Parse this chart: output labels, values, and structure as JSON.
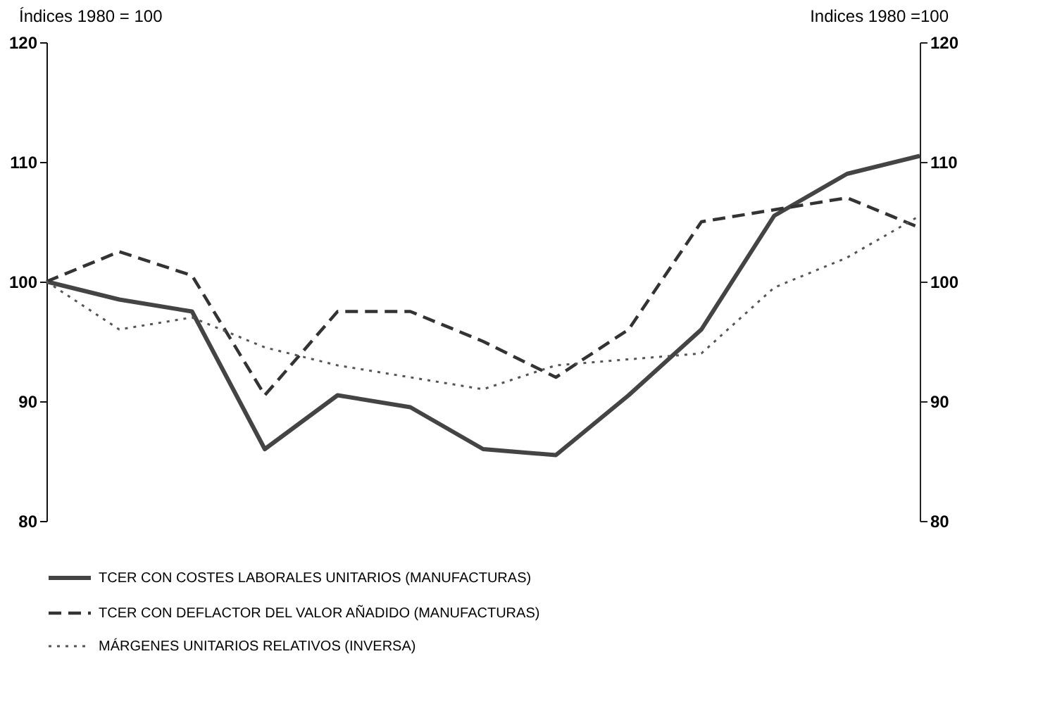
{
  "chart_data": {
    "type": "line",
    "ylabel": "Índices 1980 = 100",
    "y2label": "Indices 1980 =100",
    "categories": [
      null,
      null,
      null,
      null,
      null,
      null,
      null,
      null,
      null,
      null,
      null,
      null,
      null
    ],
    "series": [
      {
        "name": "TCER CON COSTES LABORALES UNITARIOS (MANUFACTURAS)",
        "color": "#444444",
        "line_style": "solid",
        "values": [
          100,
          98.5,
          97.5,
          86,
          90.5,
          89.5,
          86,
          85.5,
          90.5,
          96,
          105.5,
          109,
          110.5
        ]
      },
      {
        "name": "TCER CON DEFLACTOR DEL VALOR AÑADIDO (MANUFACTURAS)",
        "color": "#333333",
        "line_style": "dashed",
        "values": [
          100,
          102.5,
          100.5,
          90.5,
          97.5,
          97.5,
          95,
          92,
          96,
          105,
          106,
          107,
          104.5
        ]
      },
      {
        "name": "MÁRGENES UNITARIOS RELATIVOS (INVERSA)",
        "color": "#555555",
        "line_style": "dotted",
        "values": [
          100,
          96,
          97,
          94.5,
          93,
          92,
          91,
          93,
          93.5,
          94,
          99.5,
          102,
          105.5
        ]
      }
    ],
    "ylim": [
      80,
      120
    ],
    "yticks": [
      80,
      90,
      100,
      110,
      120
    ],
    "y2lim": [
      80,
      120
    ],
    "y2ticks": [
      80,
      90,
      100,
      110,
      120
    ],
    "legend": "bottom left",
    "grid": false,
    "marker": "none"
  }
}
